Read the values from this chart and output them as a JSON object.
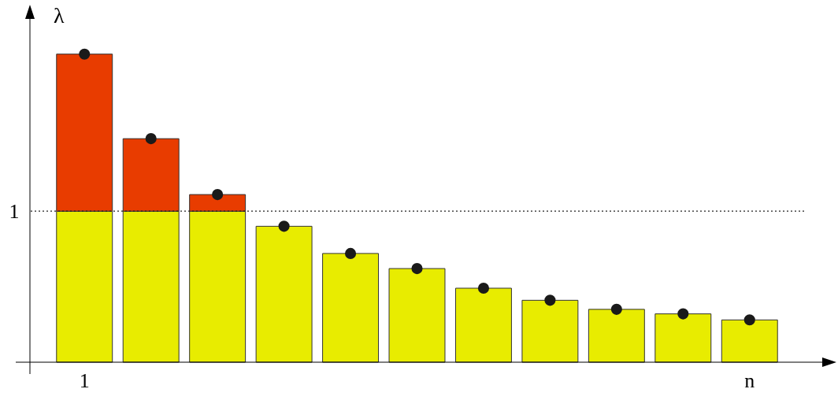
{
  "chart_data": {
    "type": "bar",
    "ylabel": "λ",
    "stacked": true,
    "grid": false,
    "ylim": [
      0,
      2.32
    ],
    "yticks": [
      1
    ],
    "categories": [
      "1",
      null,
      null,
      null,
      null,
      null,
      null,
      null,
      null,
      null,
      "n"
    ],
    "series": [
      {
        "color": "#e8ec00",
        "values": [
          1,
          1,
          1,
          0.9,
          0.72,
          0.62,
          0.49,
          0.41,
          0.35,
          0.32,
          0.28
        ]
      },
      {
        "color": "#e83c00",
        "values": [
          1.04,
          0.48,
          0.11,
          null,
          null,
          null,
          null,
          null,
          null,
          null,
          null
        ]
      },
      {
        "type": "scatter",
        "color": "#1a1a1a",
        "marker": "circle",
        "values": [
          2.04,
          1.48,
          1.11,
          0.9,
          0.72,
          0.62,
          0.49,
          0.41,
          0.35,
          0.32,
          0.28
        ]
      }
    ],
    "ref_lines": [
      {
        "axis": "y",
        "value": 1,
        "color": "#222222",
        "line_style": "dotted"
      }
    ]
  }
}
